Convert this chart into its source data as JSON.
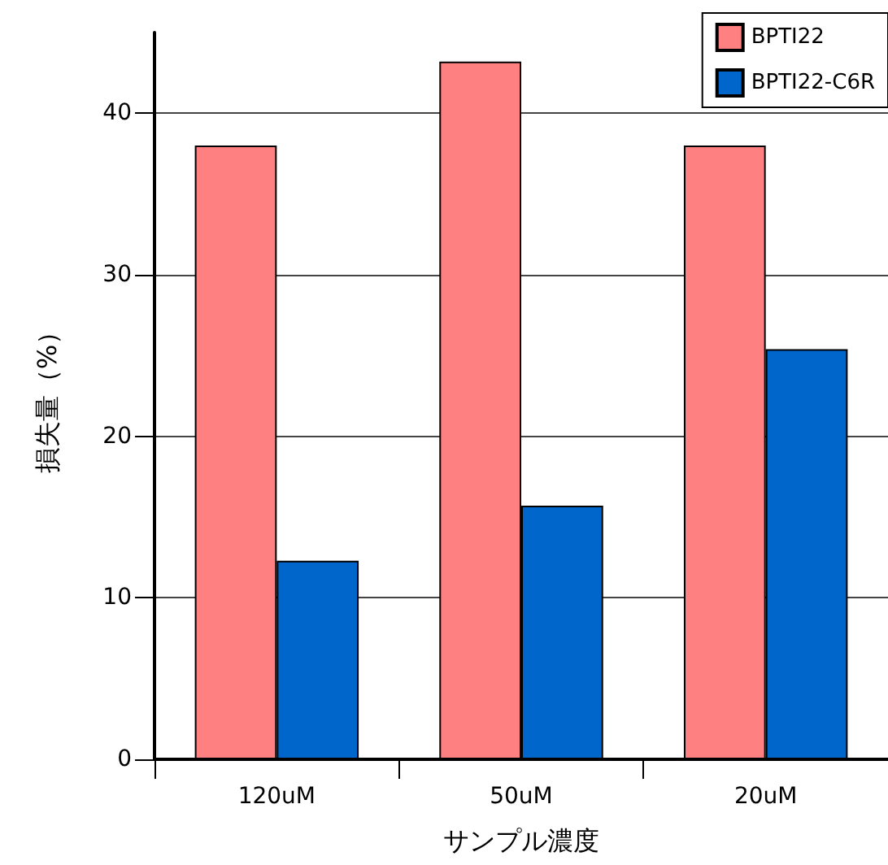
{
  "chart_data": {
    "type": "bar",
    "xlabel": "サンプル濃度",
    "ylabel": "損失量（%）",
    "categories": [
      "120uM",
      "50uM",
      "20uM"
    ],
    "series": [
      {
        "name": "BPTI22",
        "color": "#ff8080",
        "values": [
          38.0,
          43.2,
          38.0
        ]
      },
      {
        "name": "BPTI22-C6R",
        "color": "#0066cc",
        "values": [
          12.3,
          15.7,
          25.4
        ]
      }
    ],
    "ylim": [
      0,
      45
    ],
    "yticks": [
      0,
      10,
      20,
      30,
      40
    ],
    "grid": "y",
    "legend": "top right"
  }
}
